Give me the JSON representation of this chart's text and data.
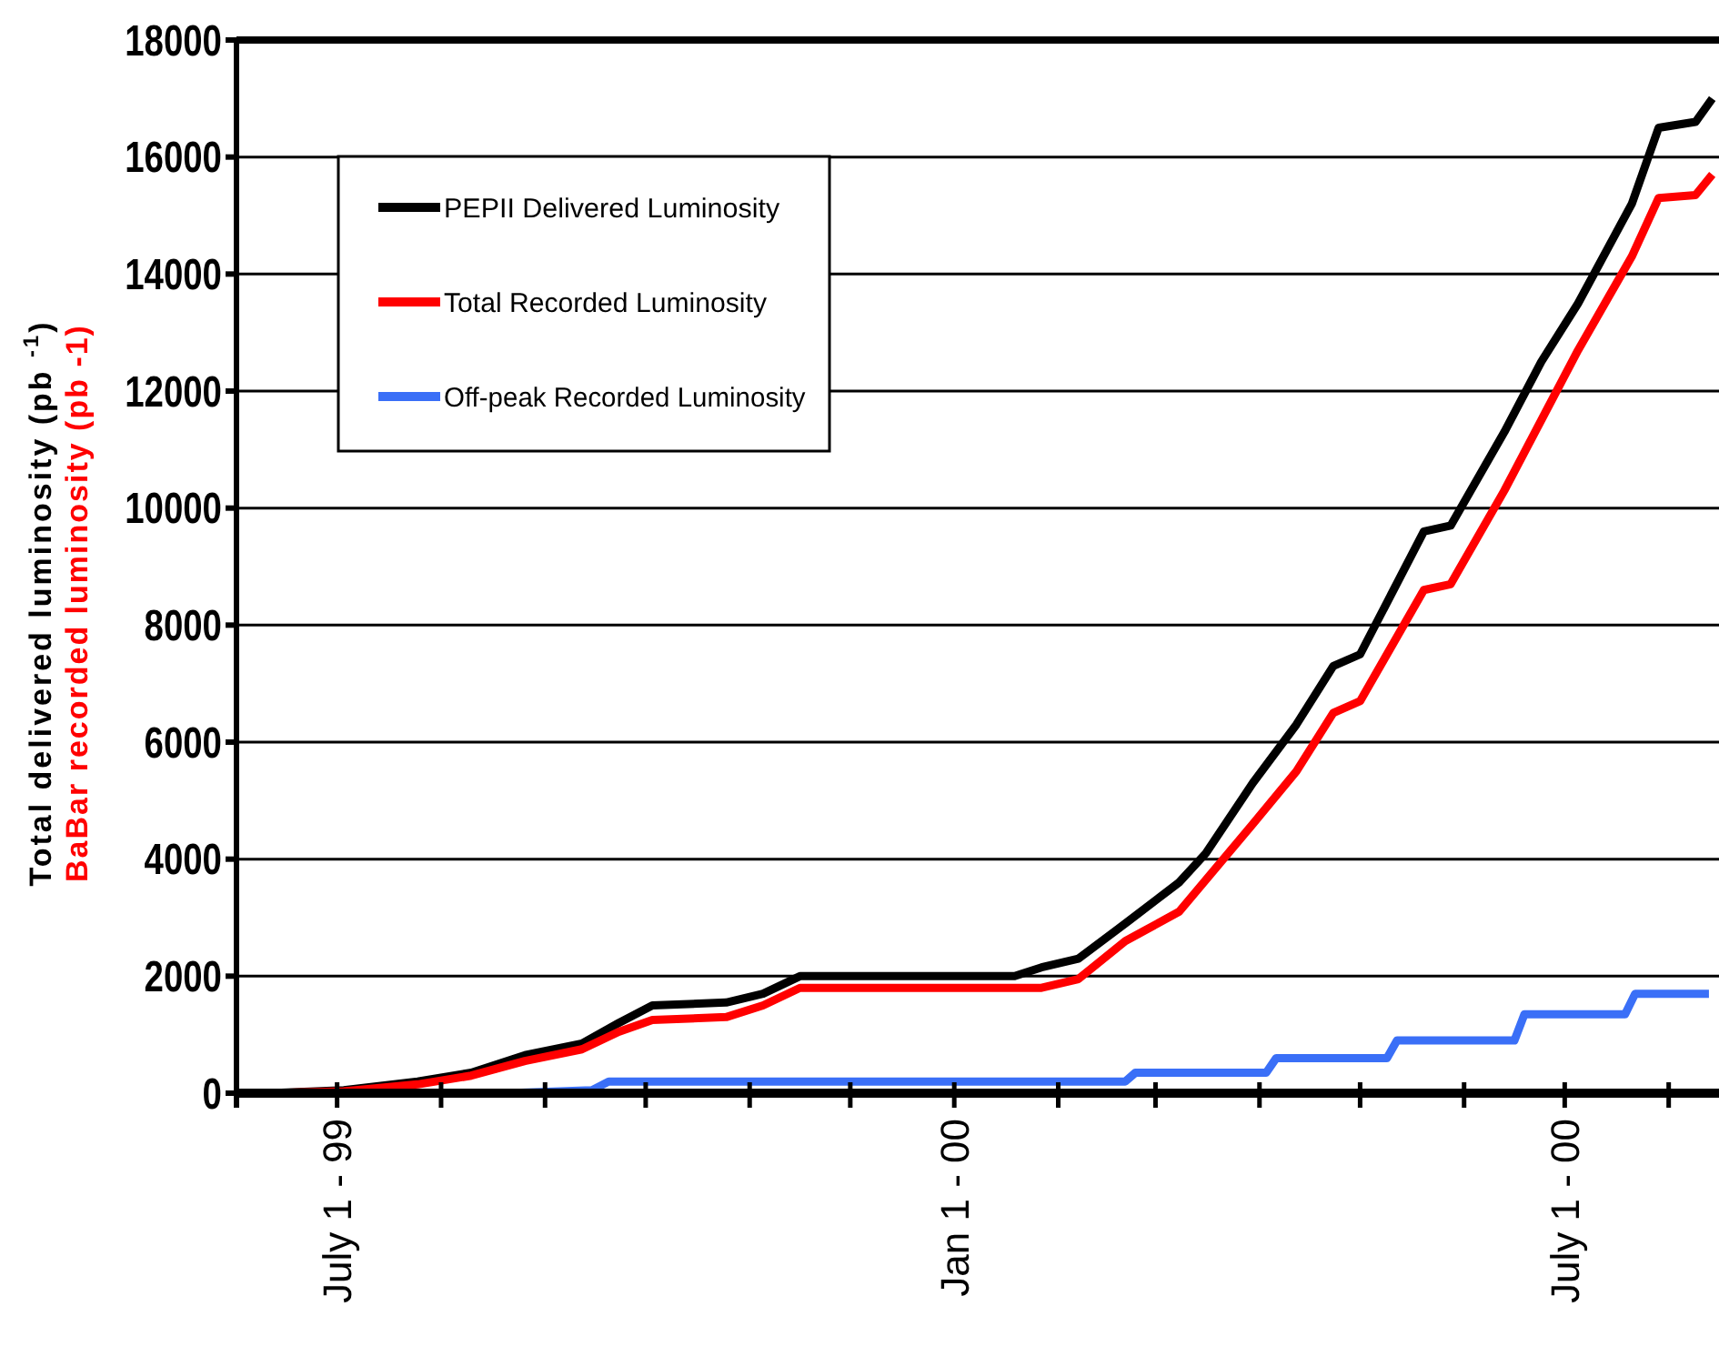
{
  "chart_data": {
    "type": "line",
    "ylabel": "Total delivered  luminosity (pb $^{-1}$)",
    "annotations": [
      "BaBar recorded luminosity (pb -1)"
    ],
    "xlim": [
      "1999-06-01",
      "2000-08-16"
    ],
    "xticks": [
      {
        "value": "1999-06-01",
        "label": null
      },
      {
        "value": "1999-07-01",
        "label": "July 1 - 99"
      },
      {
        "value": "1999-08-01",
        "label": null
      },
      {
        "value": "1999-09-01",
        "label": null
      },
      {
        "value": "1999-10-01",
        "label": null
      },
      {
        "value": "1999-11-01",
        "label": null
      },
      {
        "value": "1999-12-01",
        "label": null
      },
      {
        "value": "2000-01-01",
        "label": "Jan 1 - 00"
      },
      {
        "value": "2000-02-01",
        "label": null
      },
      {
        "value": "2000-03-01",
        "label": null
      },
      {
        "value": "2000-04-01",
        "label": null
      },
      {
        "value": "2000-05-01",
        "label": null
      },
      {
        "value": "2000-06-01",
        "label": null
      },
      {
        "value": "2000-07-01",
        "label": "July 1 - 00"
      },
      {
        "value": "2000-08-01",
        "label": null
      }
    ],
    "ylim": [
      0,
      18000
    ],
    "yticks": [
      0,
      2000,
      4000,
      6000,
      8000,
      10000,
      12000,
      14000,
      16000,
      18000
    ],
    "grid": "y",
    "legend": "top left",
    "marker": "none",
    "line_style": "solid",
    "series": [
      {
        "name": "PEPII Delivered Luminosity",
        "color": "#000000",
        "x": [
          "1999-06-11",
          "1999-07-03",
          "1999-07-25",
          "1999-08-10",
          "1999-08-26",
          "1999-09-12",
          "1999-09-23",
          "1999-10-03",
          "1999-10-25",
          "1999-11-05",
          "1999-11-16",
          "2000-01-19",
          "2000-01-27",
          "2000-02-07",
          "2000-02-21",
          "2000-03-08",
          "2000-03-16",
          "2000-03-30",
          "2000-04-12",
          "2000-04-23",
          "2000-05-01",
          "2000-05-20",
          "2000-05-28",
          "2000-06-13",
          "2000-06-24",
          "2000-07-05",
          "2000-07-21",
          "2000-07-29",
          "2000-08-09",
          "2000-08-14"
        ],
        "values": [
          0,
          50,
          200,
          350,
          650,
          850,
          1200,
          1500,
          1550,
          1700,
          2000,
          2000,
          2150,
          2300,
          2900,
          3600,
          4100,
          5300,
          6300,
          7300,
          7500,
          9600,
          9700,
          11300,
          12500,
          13500,
          15200,
          16500,
          16600,
          17000
        ]
      },
      {
        "name": "Total Recorded Luminosity",
        "color": "#ff0000",
        "x": [
          "1999-06-11",
          "1999-07-03",
          "1999-07-25",
          "1999-08-10",
          "1999-08-26",
          "1999-09-12",
          "1999-09-23",
          "1999-10-03",
          "1999-10-25",
          "1999-11-05",
          "1999-11-16",
          "2000-01-27",
          "2000-02-07",
          "2000-02-21",
          "2000-03-08",
          "2000-03-30",
          "2000-04-12",
          "2000-04-23",
          "2000-05-01",
          "2000-05-20",
          "2000-05-28",
          "2000-06-13",
          "2000-06-24",
          "2000-07-05",
          "2000-07-21",
          "2000-07-29",
          "2000-08-09",
          "2000-08-14"
        ],
        "values": [
          0,
          30,
          150,
          300,
          550,
          750,
          1050,
          1250,
          1300,
          1500,
          1800,
          1800,
          1950,
          2600,
          3100,
          4600,
          5500,
          6500,
          6700,
          8600,
          8700,
          10300,
          11500,
          12700,
          14300,
          15300,
          15350,
          15700
        ]
      },
      {
        "name": "Off-peak Recorded Luminosity",
        "color": "#3a6ff7",
        "x": [
          "1999-06-10",
          "1999-08-21",
          "1999-09-15",
          "1999-09-20",
          "2000-02-21",
          "2000-02-24",
          "2000-04-03",
          "2000-04-06",
          "2000-05-09",
          "2000-05-12",
          "2000-06-16",
          "2000-06-19",
          "2000-07-19",
          "2000-07-22",
          "2000-08-13"
        ],
        "values": [
          0,
          0,
          50,
          200,
          200,
          350,
          350,
          600,
          600,
          900,
          900,
          1350,
          1350,
          1700,
          1700
        ]
      }
    ]
  }
}
